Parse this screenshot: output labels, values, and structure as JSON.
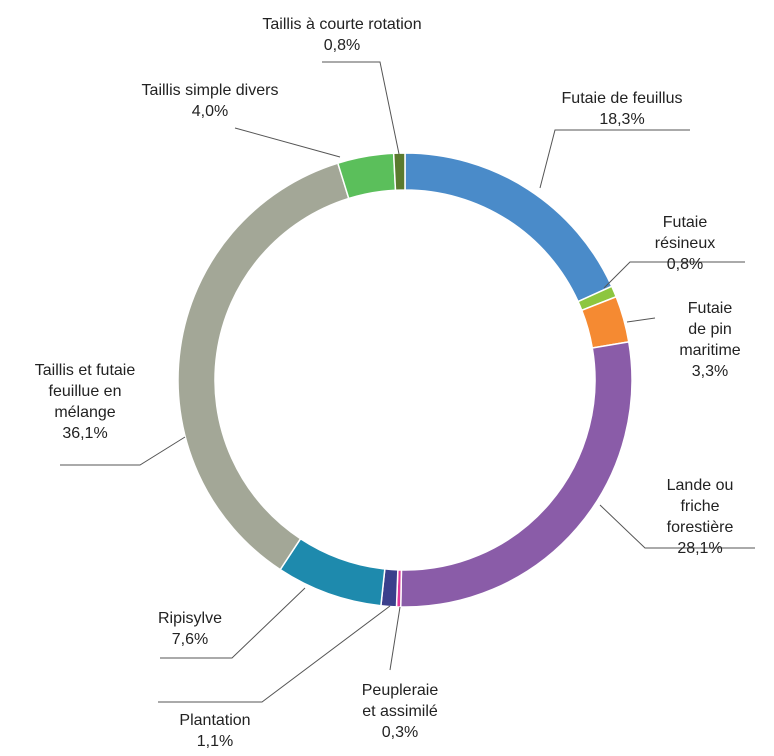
{
  "chart_data": {
    "type": "donut",
    "categories": [
      "Futaie de feuillus",
      "Futaie résineux",
      "Futaie de pin\nmaritime",
      "Lande ou friche\nforestière",
      "Peupleraie\net assimilé",
      "Plantation",
      "Ripisylve",
      "Taillis et futaie\nfeuillue en\nmélange",
      "Taillis simple divers",
      "Taillis à courte rotation"
    ],
    "values": [
      18.3,
      0.8,
      3.3,
      28.1,
      0.3,
      1.1,
      7.6,
      36.1,
      4.0,
      0.8
    ],
    "value_labels": [
      "18,3%",
      "0,8%",
      "3,3%",
      "28,1%",
      "0,3%",
      "1,1%",
      "7,6%",
      "36,1%",
      "4,0%",
      "0,8%"
    ],
    "colors": [
      "#4a8bc9",
      "#8dc63f",
      "#f58a32",
      "#8a5ca8",
      "#e0399b",
      "#3b3f8c",
      "#1e8aad",
      "#a3a797",
      "#5bbf5b",
      "#5a7a2e"
    ]
  }
}
